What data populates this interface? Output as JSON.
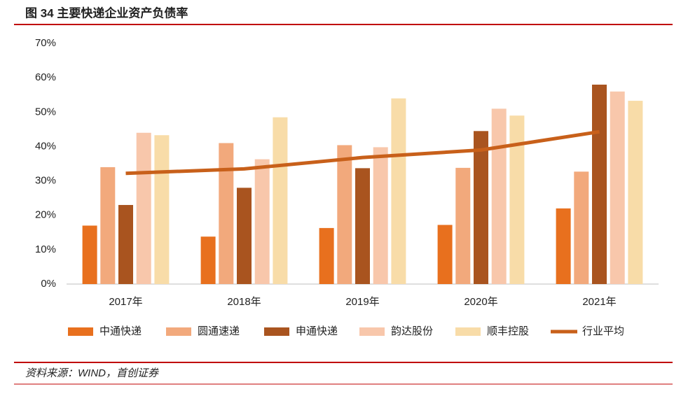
{
  "chart_data": {
    "type": "bar",
    "title": "图 34 主要快递企业资产负债率",
    "source": "资料来源：WIND，首创证券",
    "categories": [
      "2017年",
      "2018年",
      "2019年",
      "2020年",
      "2021年"
    ],
    "series": [
      {
        "name": "中通快递",
        "color": "#e8701e",
        "values": [
          17,
          13.8,
          16.3,
          17.2,
          22
        ]
      },
      {
        "name": "圆通速递",
        "color": "#f2a97c",
        "values": [
          34,
          41,
          40.4,
          33.8,
          32.7
        ]
      },
      {
        "name": "申通快递",
        "color": "#a9541f",
        "values": [
          23,
          28,
          33.7,
          44.5,
          58
        ]
      },
      {
        "name": "韵达股份",
        "color": "#f8c7ab",
        "values": [
          44,
          36.3,
          39.8,
          51,
          56
        ]
      },
      {
        "name": "顺丰控股",
        "color": "#f8dca8",
        "values": [
          43.3,
          48.5,
          54,
          49,
          53.3
        ]
      },
      {
        "name": "行业平均",
        "color": "#c8601a",
        "type": "line",
        "values": [
          32.2,
          33.5,
          36.8,
          39,
          44.3
        ]
      }
    ],
    "ylim": [
      0,
      70
    ],
    "yticks": [
      {
        "value": 0,
        "label": "0%"
      },
      {
        "value": 10,
        "label": "10%"
      },
      {
        "value": 20,
        "label": "20%"
      },
      {
        "value": 30,
        "label": "30%"
      },
      {
        "value": 40,
        "label": "40%"
      },
      {
        "value": 50,
        "label": "50%"
      },
      {
        "value": 60,
        "label": "60%"
      },
      {
        "value": 70,
        "label": "70%"
      }
    ],
    "grid": false
  }
}
